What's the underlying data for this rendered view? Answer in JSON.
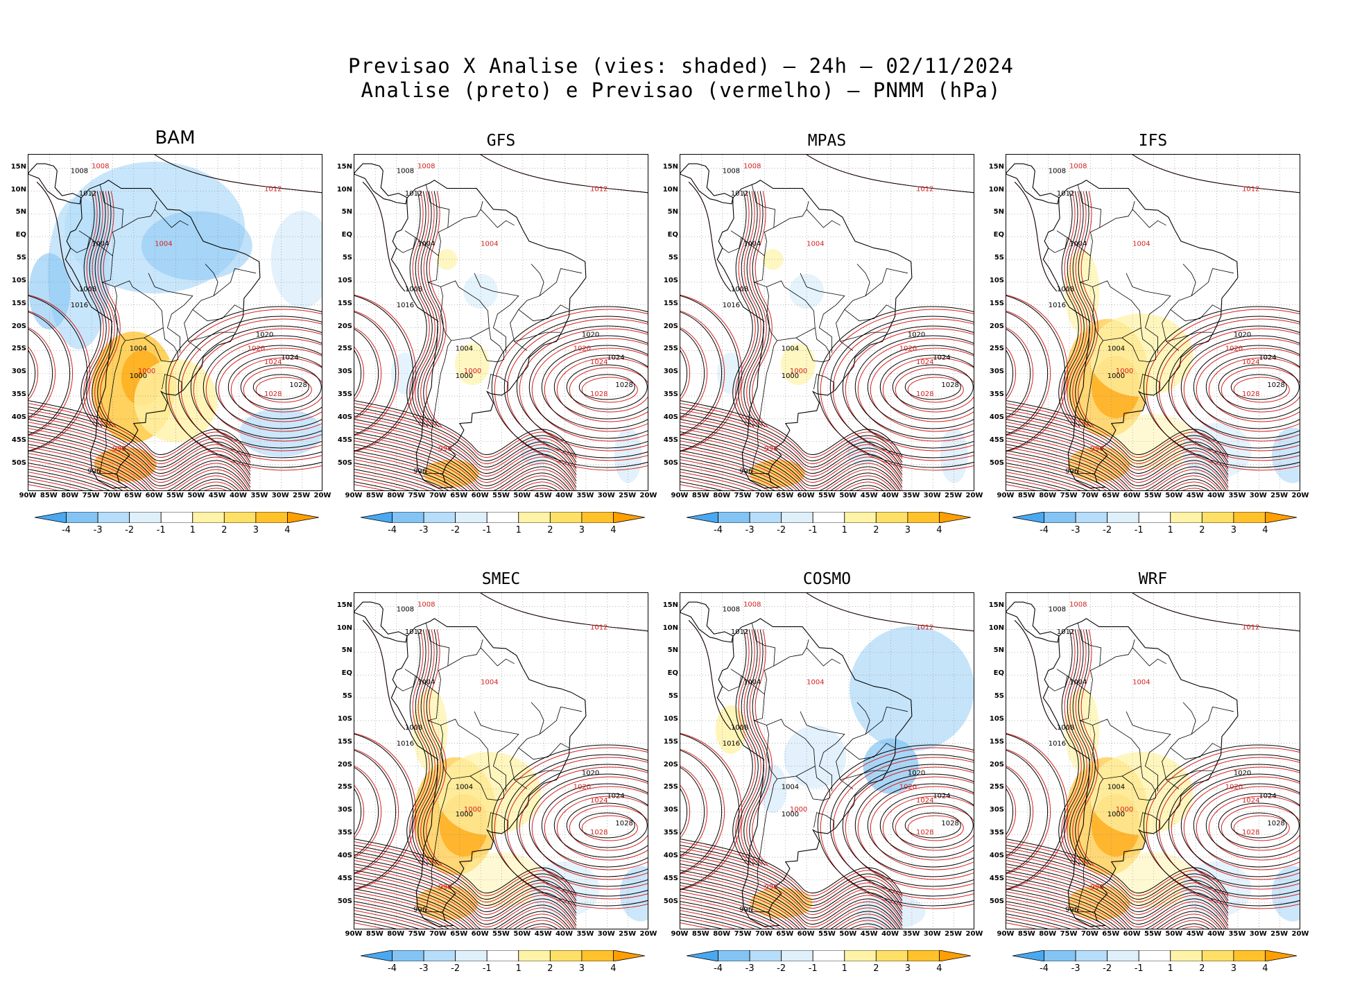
{
  "figure": {
    "title_line1": "Previsao X Analise (vies: shaded) — 24h — 02/11/2024",
    "title_line2": "Analise (preto) e Previsao (vermelho) — PNMM (hPa)"
  },
  "axes": {
    "lat_labels": [
      "15N",
      "10N",
      "5N",
      "EQ",
      "5S",
      "10S",
      "15S",
      "20S",
      "25S",
      "30S",
      "35S",
      "40S",
      "45S",
      "50S"
    ],
    "lon_labels": [
      "90W",
      "85W",
      "80W",
      "75W",
      "70W",
      "65W",
      "60W",
      "55W",
      "50W",
      "45W",
      "40W",
      "35W",
      "30W",
      "25W",
      "20W"
    ]
  },
  "colorbar": {
    "labels": [
      "-4",
      "-3",
      "-2",
      "-1",
      "1",
      "2",
      "3",
      "4"
    ],
    "colors": [
      "#4aa8f0",
      "#84c4f4",
      "#b6ddf9",
      "#dff0fb",
      "#ffffff",
      "#fff3a8",
      "#ffe066",
      "#ffc22a",
      "#ff9f00"
    ]
  },
  "colors": {
    "analysis_contour": "#000000",
    "forecast_contour": "#d42020",
    "gridline": "#888888"
  },
  "panels": [
    {
      "id": "bam",
      "name": "BAM",
      "bias": "mixed-warm"
    },
    {
      "id": "gfs",
      "name": "GFS",
      "bias": "small"
    },
    {
      "id": "mpas",
      "name": "MPAS",
      "bias": "small"
    },
    {
      "id": "ifs",
      "name": "IFS",
      "bias": "warm"
    },
    {
      "id": "smec",
      "name": "SMEC",
      "bias": "warm"
    },
    {
      "id": "cosmo",
      "name": "COSMO",
      "bias": "cold"
    },
    {
      "id": "wrf",
      "name": "WRF",
      "bias": "warm"
    }
  ],
  "contour_labels": {
    "analysis": [
      "1008",
      "1012",
      "1004",
      "1008",
      "1016",
      "1004",
      "1020",
      "1024",
      "1028",
      "1000",
      "996"
    ],
    "forecast": [
      "1008",
      "1012",
      "1004",
      "1020",
      "1024",
      "1028",
      "1000",
      "996"
    ]
  }
}
